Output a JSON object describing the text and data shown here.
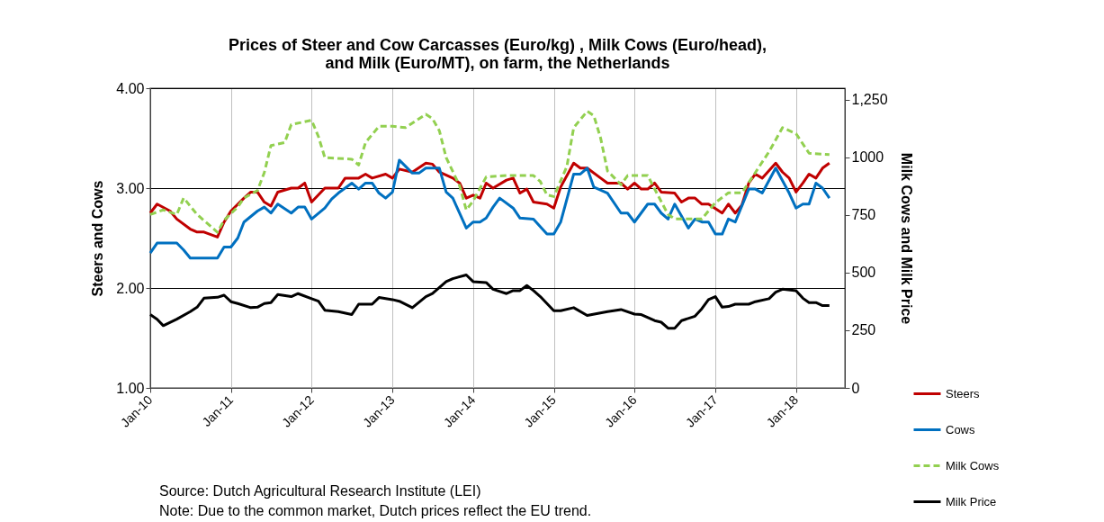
{
  "chart_data": {
    "type": "line",
    "title": "Prices of Steer and Cow Carcasses (Euro/kg) , Milk Cows (Euro/head),\nand Milk (Euro/MT), on farm, the Netherlands",
    "ylabel": "Steers and Cows",
    "y2label": "Milk Cows and Milk Price",
    "xlim": [
      "2010-01",
      "2018-08-10"
    ],
    "xticks": [
      {
        "value": "2010-01",
        "label": "Jan-10"
      },
      {
        "value": "2011-01",
        "label": "Jan-11"
      },
      {
        "value": "2012-01",
        "label": "Jan-12"
      },
      {
        "value": "2013-01",
        "label": "Jan-13"
      },
      {
        "value": "2014-01",
        "label": "Jan-14"
      },
      {
        "value": "2015-01",
        "label": "Jan-15"
      },
      {
        "value": "2016-01",
        "label": "Jan-16"
      },
      {
        "value": "2017-01",
        "label": "Jan-17"
      },
      {
        "value": "2018-01",
        "label": "Jan-18"
      }
    ],
    "ylim": [
      1,
      4
    ],
    "yticks": [
      {
        "value": 1,
        "label": "1.00"
      },
      {
        "value": 2,
        "label": "2.00"
      },
      {
        "value": 3,
        "label": "3.00"
      },
      {
        "value": 4,
        "label": "4.00"
      }
    ],
    "y2lim": [
      0,
      1300
    ],
    "y2ticks": [
      0,
      250,
      500,
      750,
      1000,
      {
        "value": 1250,
        "label": "1,250"
      }
    ],
    "grid": true,
    "legend": "bottom right",
    "series": [
      {
        "name": "Steers",
        "color": "#c00000",
        "line_style": "solid",
        "x": [
          "2010-01",
          "2010-02",
          "2010-04",
          "2010-05",
          "2010-07",
          "2010-08",
          "2010-09",
          "2010-11",
          "2010-12",
          "2011-01",
          "2011-03",
          "2011-04",
          "2011-05",
          "2011-06",
          "2011-07",
          "2011-08",
          "2011-10",
          "2011-11",
          "2011-12",
          "2012-01",
          "2012-03",
          "2012-05",
          "2012-06",
          "2012-08",
          "2012-09",
          "2012-10",
          "2012-12",
          "2013-01",
          "2013-02",
          "2013-04",
          "2013-06",
          "2013-07",
          "2013-08",
          "2013-10",
          "2013-11",
          "2013-12",
          "2014-01",
          "2014-02",
          "2014-03",
          "2014-04",
          "2014-06",
          "2014-07",
          "2014-08",
          "2014-09",
          "2014-10",
          "2014-12",
          "2015-01",
          "2015-02",
          "2015-04",
          "2015-05",
          "2015-06",
          "2015-08",
          "2015-09",
          "2015-11",
          "2015-12",
          "2016-01",
          "2016-02",
          "2016-03",
          "2016-04",
          "2016-05",
          "2016-07",
          "2016-08",
          "2016-09",
          "2016-10",
          "2016-11",
          "2016-12",
          "2017-02",
          "2017-03",
          "2017-04",
          "2017-05",
          "2017-06",
          "2017-07",
          "2017-08",
          "2017-10",
          "2017-11",
          "2017-12",
          "2018-01",
          "2018-02",
          "2018-03",
          "2018-04",
          "2018-05",
          "2018-06"
        ],
        "values": [
          2.75,
          2.84,
          2.77,
          2.69,
          2.59,
          2.56,
          2.56,
          2.51,
          2.66,
          2.77,
          2.9,
          2.96,
          2.96,
          2.86,
          2.82,
          2.96,
          3.0,
          3.0,
          3.05,
          2.86,
          3.0,
          3.0,
          3.1,
          3.1,
          3.14,
          3.1,
          3.14,
          3.1,
          3.19,
          3.16,
          3.25,
          3.24,
          3.16,
          3.1,
          3.05,
          2.9,
          2.93,
          2.9,
          3.05,
          3.0,
          3.08,
          3.1,
          2.95,
          2.99,
          2.86,
          2.84,
          2.8,
          3.01,
          3.25,
          3.2,
          3.2,
          3.1,
          3.05,
          3.05,
          2.99,
          3.05,
          2.99,
          2.99,
          3.05,
          2.96,
          2.95,
          2.86,
          2.9,
          2.9,
          2.84,
          2.84,
          2.75,
          2.84,
          2.75,
          2.83,
          3.05,
          3.14,
          3.1,
          3.25,
          3.16,
          3.1,
          2.96,
          3.05,
          3.14,
          3.1,
          3.2,
          3.25
        ]
      },
      {
        "name": "Cows",
        "color": "#0070c0",
        "line_style": "solid",
        "x": [
          "2010-01",
          "2010-02",
          "2010-05",
          "2010-06",
          "2010-07",
          "2010-11",
          "2010-12",
          "2011-01",
          "2011-02",
          "2011-03",
          "2011-05",
          "2011-06",
          "2011-07",
          "2011-08",
          "2011-10",
          "2011-11",
          "2011-12",
          "2012-01",
          "2012-03",
          "2012-04",
          "2012-05",
          "2012-07",
          "2012-08",
          "2012-09",
          "2012-10",
          "2012-11",
          "2012-12",
          "2013-01",
          "2013-02",
          "2013-04",
          "2013-05",
          "2013-06",
          "2013-08",
          "2013-09",
          "2013-10",
          "2013-12",
          "2014-01",
          "2014-02",
          "2014-03",
          "2014-04",
          "2014-05",
          "2014-07",
          "2014-08",
          "2014-10",
          "2014-12",
          "2015-01",
          "2015-02",
          "2015-04",
          "2015-05",
          "2015-06",
          "2015-07",
          "2015-09",
          "2015-11",
          "2015-12",
          "2016-01",
          "2016-03",
          "2016-04",
          "2016-05",
          "2016-06",
          "2016-07",
          "2016-09",
          "2016-10",
          "2016-11",
          "2016-12",
          "2017-01",
          "2017-02",
          "2017-03",
          "2017-04",
          "2017-06",
          "2017-07",
          "2017-08",
          "2017-10",
          "2017-12",
          "2018-01",
          "2018-02",
          "2018-03",
          "2018-04",
          "2018-05",
          "2018-06"
        ],
        "values": [
          2.35,
          2.45,
          2.45,
          2.38,
          2.3,
          2.3,
          2.41,
          2.41,
          2.5,
          2.66,
          2.77,
          2.81,
          2.75,
          2.84,
          2.75,
          2.81,
          2.81,
          2.69,
          2.8,
          2.89,
          2.95,
          3.05,
          2.99,
          3.05,
          3.05,
          2.95,
          2.9,
          2.96,
          3.28,
          3.15,
          3.15,
          3.2,
          3.2,
          2.96,
          2.9,
          2.6,
          2.66,
          2.66,
          2.7,
          2.81,
          2.9,
          2.8,
          2.7,
          2.69,
          2.54,
          2.54,
          2.66,
          3.14,
          3.14,
          3.2,
          3.01,
          2.95,
          2.75,
          2.75,
          2.66,
          2.84,
          2.84,
          2.75,
          2.69,
          2.84,
          2.6,
          2.69,
          2.66,
          2.66,
          2.54,
          2.54,
          2.69,
          2.66,
          2.99,
          2.99,
          2.95,
          3.2,
          2.95,
          2.8,
          2.84,
          2.84,
          3.05,
          3.0,
          2.9
        ]
      },
      {
        "name": "Milk Cows",
        "color": "#92d050",
        "line_style": "dashed",
        "axis": "y2",
        "x": [
          "2010-01",
          "2010-03",
          "2010-05",
          "2010-06",
          "2010-08",
          "2010-10",
          "2010-11",
          "2010-12",
          "2011-02",
          "2011-03",
          "2011-05",
          "2011-06",
          "2011-07",
          "2011-09",
          "2011-10",
          "2012-01",
          "2012-02",
          "2012-03",
          "2012-07",
          "2012-08",
          "2012-09",
          "2012-11",
          "2013-01",
          "2013-03",
          "2013-06",
          "2013-07",
          "2013-08",
          "2013-09",
          "2013-11",
          "2013-12",
          "2014-01",
          "2014-03",
          "2014-06",
          "2014-10",
          "2014-11",
          "2014-12",
          "2015-01",
          "2015-03",
          "2015-04",
          "2015-06",
          "2015-07",
          "2015-08",
          "2015-09",
          "2015-11",
          "2015-12",
          "2016-03",
          "2016-04",
          "2016-06",
          "2016-07",
          "2016-11",
          "2017-01",
          "2017-03",
          "2017-05",
          "2017-07",
          "2017-09",
          "2017-11",
          "2018-01",
          "2018-03",
          "2018-06"
        ],
        "values": [
          752,
          772,
          752,
          824,
          752,
          701,
          675,
          727,
          785,
          824,
          856,
          934,
          1051,
          1064,
          1142,
          1161,
          1090,
          999,
          992,
          967,
          1064,
          1135,
          1135,
          1129,
          1187,
          1168,
          1116,
          999,
          876,
          772,
          811,
          915,
          921,
          921,
          895,
          837,
          830,
          960,
          1129,
          1200,
          1181,
          1083,
          941,
          882,
          921,
          921,
          863,
          752,
          733,
          733,
          804,
          846,
          846,
          934,
          1025,
          1129,
          1103,
          1018,
          1012
        ]
      },
      {
        "name": "Milk Price",
        "color": "#000000",
        "line_style": "solid",
        "axis": "y2",
        "x": [
          "2010-01",
          "2010-02",
          "2010-03",
          "2010-05",
          "2010-07",
          "2010-08",
          "2010-09",
          "2010-11",
          "2010-12",
          "2011-01",
          "2011-02",
          "2011-04",
          "2011-05",
          "2011-06",
          "2011-07",
          "2011-08",
          "2011-10",
          "2011-11",
          "2012-01",
          "2012-02",
          "2012-03",
          "2012-05",
          "2012-07",
          "2012-08",
          "2012-10",
          "2012-11",
          "2013-01",
          "2013-02",
          "2013-04",
          "2013-06",
          "2013-07",
          "2013-09",
          "2013-10",
          "2013-12",
          "2014-01",
          "2014-03",
          "2014-04",
          "2014-06",
          "2014-07",
          "2014-08",
          "2014-09",
          "2014-10",
          "2014-11",
          "2015-01",
          "2015-02",
          "2015-04",
          "2015-06",
          "2015-09",
          "2015-11",
          "2016-01",
          "2016-02",
          "2016-04",
          "2016-05",
          "2016-06",
          "2016-07",
          "2016-08",
          "2016-10",
          "2016-11",
          "2016-12",
          "2017-01",
          "2017-02",
          "2017-03",
          "2017-04",
          "2017-06",
          "2017-07",
          "2017-09",
          "2017-10",
          "2017-11",
          "2018-01",
          "2018-02",
          "2018-03",
          "2018-04",
          "2018-05",
          "2018-06"
        ],
        "values": [
          318,
          298,
          270,
          298,
          331,
          350,
          389,
          393,
          402,
          374,
          366,
          348,
          350,
          366,
          370,
          405,
          396,
          409,
          387,
          376,
          337,
          331,
          318,
          363,
          363,
          392,
          383,
          376,
          348,
          396,
          409,
          461,
          474,
          490,
          461,
          457,
          428,
          409,
          422,
          422,
          444,
          422,
          396,
          335,
          335,
          348,
          314,
          331,
          340,
          320,
          318,
          292,
          285,
          259,
          259,
          292,
          311,
          344,
          383,
          396,
          350,
          353,
          363,
          363,
          374,
          387,
          415,
          428,
          422,
          389,
          370,
          370,
          357,
          357
        ]
      }
    ],
    "annotations": [
      "Source: Dutch Agricultural Research Institute (LEI)",
      "Note: Due to the common market, Dutch prices reflect the EU trend."
    ]
  }
}
